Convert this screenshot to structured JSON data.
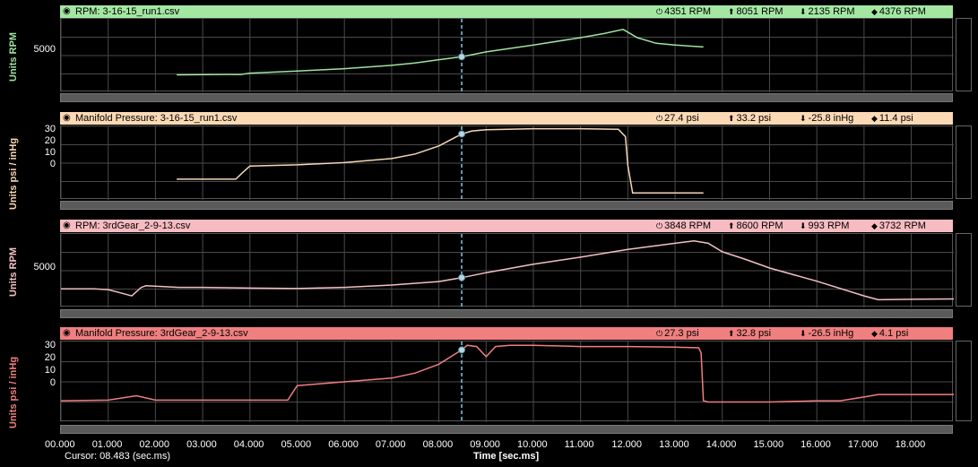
{
  "chart_data": [
    {
      "type": "line",
      "header": "RPM: 3-16-15_run1.csv",
      "color": "#9fe39f",
      "header_bg": "#a3e7a3",
      "ylabel": "Units RPM",
      "yticks": [
        "5000"
      ],
      "ytick_values": [
        5000
      ],
      "ylim": [
        0,
        9000
      ],
      "stats": {
        "cursor": "4351 RPM",
        "max": "8051 RPM",
        "min": "2135 RPM",
        "avg": "4376 RPM"
      },
      "x": [
        2.45,
        3.0,
        3.5,
        3.8,
        4.0,
        5.0,
        6.0,
        7.0,
        7.5,
        8.0,
        8.483,
        9.0,
        10.0,
        11.0,
        11.5,
        11.9,
        12.2,
        12.6,
        13.0,
        13.6
      ],
      "values": [
        2135,
        2160,
        2200,
        2180,
        2350,
        2600,
        2900,
        3300,
        3600,
        4000,
        4351,
        4950,
        5800,
        6700,
        7200,
        7700,
        6700,
        6000,
        5800,
        5550
      ]
    },
    {
      "type": "line",
      "header": "Manifold Pressure: 3-16-15_run1.csv",
      "color": "#f5d7b5",
      "header_bg": "#fbd9b4",
      "ylabel": "Units psi / inHg",
      "yticks": [
        "30",
        "20",
        "10",
        "0"
      ],
      "ytick_values": [
        30,
        20,
        10,
        0
      ],
      "ylim": [
        -30,
        34
      ],
      "stats": {
        "cursor": "27.4 psi",
        "max": "33.2 psi",
        "min": "-25.8 inHg",
        "avg": "11.4 psi"
      },
      "x": [
        2.45,
        3.0,
        3.5,
        3.7,
        3.85,
        4.0,
        5.0,
        6.0,
        7.0,
        7.5,
        8.0,
        8.483,
        8.7,
        9.0,
        10.0,
        11.0,
        11.8,
        11.95,
        12.0,
        12.1,
        13.6
      ],
      "values": [
        -12,
        -12,
        -12,
        -12,
        -6,
        -0.5,
        0.5,
        2.5,
        6,
        10,
        17,
        27.4,
        30,
        31,
        32,
        32,
        31.5,
        25,
        0,
        -24,
        -24
      ]
    },
    {
      "type": "line",
      "header": "RPM: 3rdGear_2-9-13.csv",
      "color": "#f4c0c4",
      "header_bg": "#f7bcc1",
      "ylabel": "Units RPM",
      "yticks": [
        "5000"
      ],
      "ytick_values": [
        5000
      ],
      "ylim": [
        0,
        9500
      ],
      "stats": {
        "cursor": "3848 RPM",
        "max": "8600 RPM",
        "min": "993 RPM",
        "avg": "3732 RPM"
      },
      "x": [
        0.0,
        0.7,
        1.0,
        1.5,
        1.7,
        1.8,
        2.5,
        3.0,
        4.0,
        5.0,
        6.0,
        7.0,
        8.0,
        8.483,
        9.0,
        10.0,
        11.0,
        12.0,
        13.0,
        13.4,
        13.7,
        14.0,
        14.5,
        15.0,
        16.0,
        17.0,
        17.3,
        18.0,
        18.9
      ],
      "values": [
        2400,
        2400,
        2300,
        1500,
        2600,
        2800,
        2600,
        2600,
        2500,
        2450,
        2600,
        2900,
        3350,
        3848,
        4500,
        5600,
        6500,
        7500,
        8300,
        8600,
        8300,
        7200,
        6200,
        5100,
        3400,
        1500,
        993,
        1050,
        1100
      ]
    },
    {
      "type": "line",
      "header": "Manifold Pressure: 3rdGear_2-9-13.csv",
      "color": "#f07f7f",
      "header_bg": "#f07f7f",
      "ylabel": "Units psi / inHg",
      "yticks": [
        "30",
        "20",
        "10",
        "0"
      ],
      "ytick_values": [
        30,
        20,
        10,
        0
      ],
      "ylim": [
        -30,
        34
      ],
      "stats": {
        "cursor": "27.3 psi",
        "max": "32.8 psi",
        "min": "-26.5 inHg",
        "avg": "4.1 psi"
      },
      "x": [
        0.0,
        1.0,
        1.6,
        2.0,
        3.0,
        4.0,
        4.8,
        5.0,
        6.0,
        7.0,
        7.5,
        8.0,
        8.483,
        8.6,
        8.8,
        9.0,
        9.2,
        9.5,
        10.0,
        11.0,
        12.0,
        13.0,
        13.5,
        13.55,
        13.6,
        13.7,
        15.0,
        16.0,
        16.5,
        17.0,
        17.3,
        18.0,
        18.9
      ],
      "values": [
        -13,
        -12.5,
        -9,
        -12.5,
        -12.5,
        -12.5,
        -12.5,
        -1,
        2,
        5,
        9,
        16,
        27.3,
        31,
        30,
        22,
        30,
        31,
        31,
        30,
        30,
        29.5,
        29,
        25,
        -13,
        -14,
        -14,
        -13,
        -13,
        -10,
        -8,
        -8,
        -8
      ]
    }
  ],
  "x_axis": {
    "xlim": [
      0,
      18.9
    ],
    "ticks": [
      "00.000",
      "01.000",
      "02.000",
      "03.000",
      "04.000",
      "05.000",
      "06.000",
      "07.000",
      "08.000",
      "09.000",
      "10.000",
      "11.000",
      "12.000",
      "13.000",
      "14.000",
      "15.000",
      "16.000",
      "17.000",
      "18.000"
    ],
    "tick_values": [
      0,
      1,
      2,
      3,
      4,
      5,
      6,
      7,
      8,
      9,
      10,
      11,
      12,
      13,
      14,
      15,
      16,
      17,
      18
    ],
    "title": "Time [sec.ms]"
  },
  "cursor": {
    "value": 8.483,
    "readout": "Cursor: 08.483 (sec.ms)",
    "color": "#7ec8e3"
  },
  "icons": {
    "eye": "eye-icon",
    "cursor_stat": "power-icon",
    "max_stat": "arrow-up-icon",
    "min_stat": "arrow-down-icon",
    "avg_stat": "diamond-icon"
  }
}
